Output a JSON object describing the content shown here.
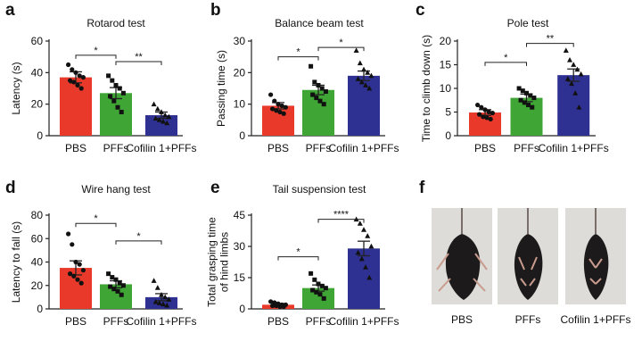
{
  "chart_data": [
    {
      "panel": "a",
      "type": "bar",
      "title": "Rotarod test",
      "ylabel": "Latency (s)",
      "ylim": [
        0,
        60
      ],
      "yticks": [
        0,
        20,
        40,
        60
      ],
      "categories": [
        "PBS",
        "PFFs",
        "Cofilin 1+PFFs"
      ],
      "values": [
        37,
        27,
        13
      ],
      "sem": [
        3.5,
        3.5,
        2
      ],
      "colors": [
        "#e8392a",
        "#3fa535",
        "#2e3192"
      ],
      "points": [
        [
          45,
          42,
          40,
          38,
          37,
          35,
          34,
          32,
          30
        ],
        [
          38,
          35,
          32,
          30,
          27,
          25,
          22,
          18,
          15
        ],
        [
          20,
          17,
          15,
          13,
          12,
          11,
          10,
          9,
          8
        ]
      ],
      "markers": [
        "circle",
        "square",
        "triangle"
      ],
      "comparisons": [
        {
          "from": 0,
          "to": 1,
          "label": "*",
          "y": 51
        },
        {
          "from": 1,
          "to": 2,
          "label": "**",
          "y": 47
        }
      ]
    },
    {
      "panel": "b",
      "type": "bar",
      "title": "Balance beam test",
      "ylabel": "Passing time (s)",
      "ylim": [
        0,
        30
      ],
      "yticks": [
        0,
        10,
        20,
        30
      ],
      "categories": [
        "PBS",
        "PFFs",
        "Cofilin 1+PFFs"
      ],
      "values": [
        9.5,
        14.5,
        19
      ],
      "sem": [
        1,
        1.5,
        1.5
      ],
      "colors": [
        "#e8392a",
        "#3fa535",
        "#2e3192"
      ],
      "points": [
        [
          13,
          11,
          10,
          9.5,
          9,
          8.5,
          8,
          7.5,
          7
        ],
        [
          22,
          17,
          16,
          15,
          14,
          13,
          12,
          11,
          10
        ],
        [
          27,
          23,
          21,
          20,
          19,
          18,
          17,
          16,
          15
        ]
      ],
      "markers": [
        "circle",
        "square",
        "triangle"
      ],
      "comparisons": [
        {
          "from": 0,
          "to": 1,
          "label": "*",
          "y": 25
        },
        {
          "from": 1,
          "to": 2,
          "label": "*",
          "y": 28
        }
      ]
    },
    {
      "panel": "c",
      "type": "bar",
      "title": "Pole test",
      "ylabel": "Time to climb down (s)",
      "ylim": [
        0,
        20
      ],
      "yticks": [
        0,
        5,
        10,
        15,
        20
      ],
      "categories": [
        "PBS",
        "PFFs",
        "Cofilin 1+PFFs"
      ],
      "values": [
        4.9,
        8,
        12.8
      ],
      "sem": [
        0.6,
        0.8,
        1.3
      ],
      "colors": [
        "#e8392a",
        "#3fa535",
        "#2e3192"
      ],
      "points": [
        [
          6.5,
          6,
          5.5,
          5,
          4.8,
          4.5,
          4,
          3.8,
          3.5
        ],
        [
          10,
          9.5,
          9,
          8.5,
          8,
          7.5,
          7,
          6.5,
          6
        ],
        [
          18,
          16,
          15,
          14,
          13,
          12,
          11,
          9,
          6
        ]
      ],
      "markers": [
        "circle",
        "square",
        "triangle"
      ],
      "comparisons": [
        {
          "from": 0,
          "to": 1,
          "label": "*",
          "y": 15.5
        },
        {
          "from": 1,
          "to": 2,
          "label": "**",
          "y": 19.5
        }
      ]
    },
    {
      "panel": "d",
      "type": "bar",
      "title": "Wire hang test",
      "ylabel": "Latency to fall (s)",
      "ylim": [
        0,
        80
      ],
      "yticks": [
        0,
        20,
        40,
        60,
        80
      ],
      "categories": [
        "PBS",
        "PFFs",
        "Cofilin 1+PFFs"
      ],
      "values": [
        35,
        21,
        10
      ],
      "sem": [
        6,
        3,
        3
      ],
      "colors": [
        "#e8392a",
        "#3fa535",
        "#2e3192"
      ],
      "points": [
        [
          64,
          55,
          40,
          38,
          33,
          30,
          28,
          25,
          22
        ],
        [
          30,
          27,
          25,
          22,
          20,
          19,
          17,
          15,
          12
        ],
        [
          24,
          18,
          12,
          10,
          8,
          6,
          5,
          4,
          3
        ]
      ],
      "markers": [
        "circle",
        "square",
        "triangle"
      ],
      "comparisons": [
        {
          "from": 0,
          "to": 1,
          "label": "*",
          "y": 73
        },
        {
          "from": 1,
          "to": 2,
          "label": "*",
          "y": 58
        }
      ]
    },
    {
      "panel": "e",
      "type": "bar",
      "title": "Tail suspension test",
      "ylabel": "Total grasping time of hind limbs",
      "ylim": [
        0,
        45
      ],
      "yticks": [
        0,
        15,
        30,
        45
      ],
      "categories": [
        "PBS",
        "PFFs",
        "Cofilin 1+PFFs"
      ],
      "values": [
        2,
        10,
        29
      ],
      "sem": [
        0.6,
        1.5,
        3.5
      ],
      "colors": [
        "#e8392a",
        "#3fa535",
        "#2e3192"
      ],
      "points": [
        [
          3.5,
          3,
          2.5,
          2,
          2,
          1.5,
          1.5,
          1,
          1
        ],
        [
          17,
          14,
          12,
          11,
          10,
          9,
          8,
          7,
          5
        ],
        [
          43,
          41,
          38,
          35,
          30,
          27,
          24,
          20,
          15
        ]
      ],
      "markers": [
        "circle",
        "square",
        "triangle"
      ],
      "comparisons": [
        {
          "from": 0,
          "to": 1,
          "label": "*",
          "y": 25
        },
        {
          "from": 1,
          "to": 2,
          "label": "****",
          "y": 43
        }
      ]
    }
  ],
  "panel_f": {
    "label": "f",
    "captions": [
      "PBS",
      "PFFs",
      "Cofilin 1+PFFs"
    ],
    "photo_bg": "#dedcd8",
    "mouse_color": "#1c1a1a"
  }
}
